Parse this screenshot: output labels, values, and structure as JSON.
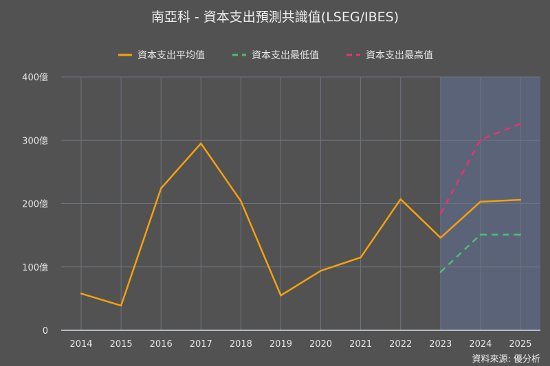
{
  "chart_data": {
    "type": "line",
    "title": "南亞科 - 資本支出預測共識值(LSEG/IBES)",
    "categories": [
      "2014",
      "2015",
      "2016",
      "2017",
      "2018",
      "2019",
      "2020",
      "2021",
      "2022",
      "2023",
      "2024",
      "2025"
    ],
    "ylim": [
      0,
      400
    ],
    "yticks": [
      0,
      100,
      200,
      300,
      400
    ],
    "ytick_labels": [
      "0",
      "100億",
      "200億",
      "300億",
      "400億"
    ],
    "grid": true,
    "legend_position": "top",
    "forecast_highlight_from": "2023",
    "highlight_color": "#5a6378",
    "series": [
      {
        "name": "資本支出平均值",
        "color": "#f5a20c",
        "style": "solid",
        "values": [
          58,
          39,
          224,
          295,
          204,
          55,
          94,
          115,
          207,
          146,
          203,
          206
        ]
      },
      {
        "name": "資本支出最低值",
        "color": "#4cbf78",
        "style": "dashed",
        "values": [
          null,
          null,
          null,
          null,
          null,
          null,
          null,
          null,
          null,
          92,
          151,
          151
        ]
      },
      {
        "name": "資本支出最高值",
        "color": "#e8336f",
        "style": "dashed",
        "values": [
          null,
          null,
          null,
          null,
          null,
          null,
          null,
          null,
          null,
          184,
          301,
          326
        ]
      }
    ]
  },
  "source": "資料來源: 優分析"
}
